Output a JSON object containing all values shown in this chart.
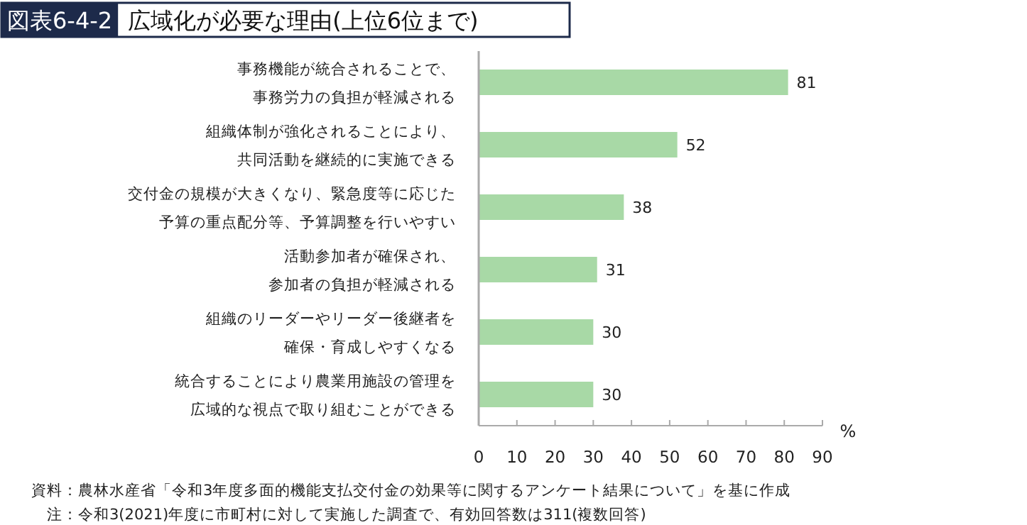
{
  "chart_data": {
    "type": "bar",
    "orientation": "horizontal",
    "title": "図表6-4-2",
    "subtitle": "広域化が必要な理由(上位6位まで)",
    "categories": [
      "事務機能が統合されることで、事務労力の負担が軽減される",
      "組織体制が強化されることにより、共同活動を継続的に実施できる",
      "交付金の規模が大きくなり、緊急度等に応じた予算の重点配分等、予算調整を行いやすい",
      "活動参加者が確保され、参加者の負担が軽減される",
      "組織のリーダーやリーダー後継者を確保・育成しやすくなる",
      "統合することにより農業用施設の管理を広域的な視点で取り組むことができる"
    ],
    "values": [
      81,
      52,
      38,
      31,
      30,
      30
    ],
    "color": "#a8d9a6",
    "xlabel": "%",
    "xlim": [
      0,
      90
    ],
    "xticks": [
      0,
      10,
      20,
      30,
      40,
      50,
      60,
      70,
      80,
      90
    ],
    "data_labels": true,
    "annotations": [
      "資料：農林水産省「令和3年度多面的機能支払交付金の効果等に関するアンケート結果について」を基に作成",
      "　注：令和3(2021)年度に市町村に対して実施した調査で、有効回答数は311(複数回答)"
    ]
  }
}
